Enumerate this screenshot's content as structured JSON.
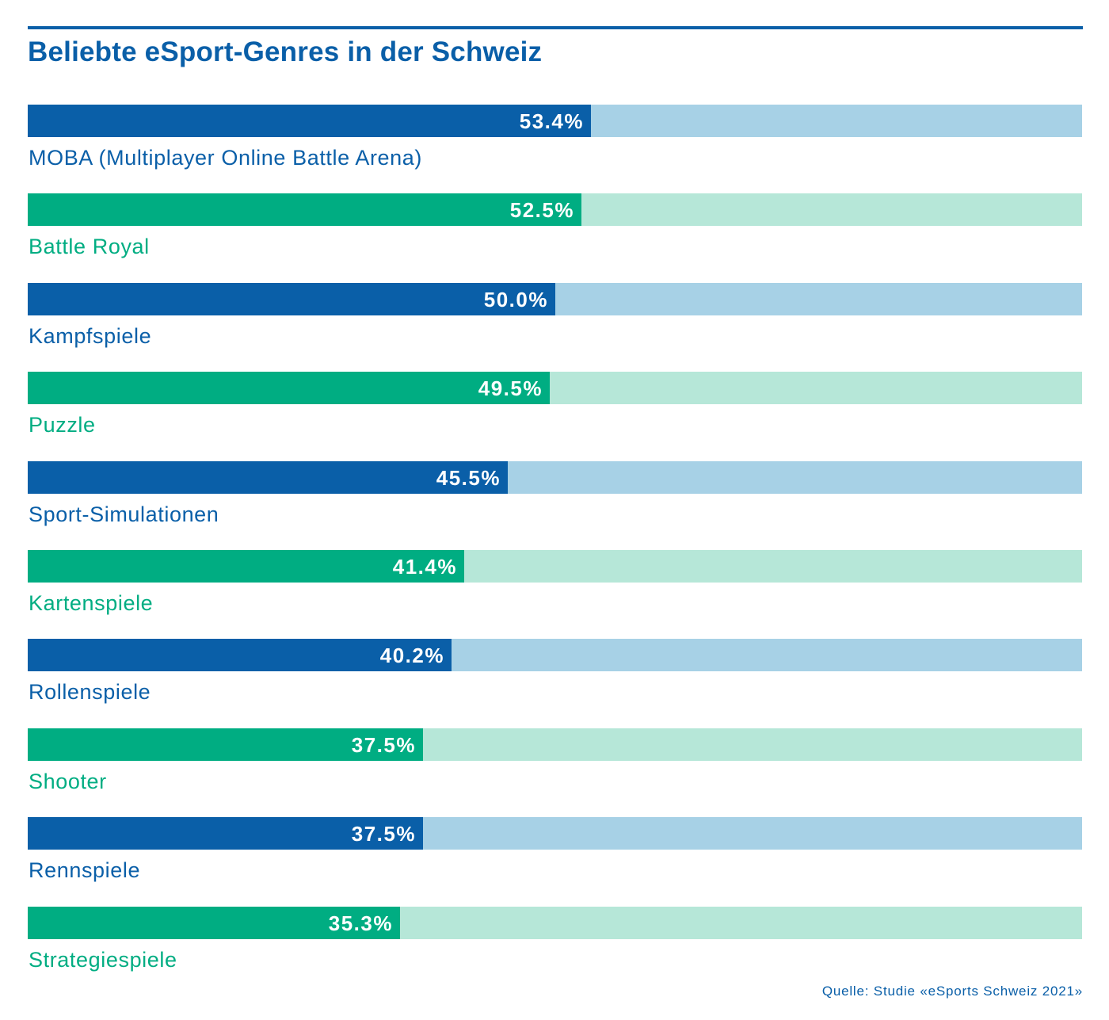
{
  "title": "Beliebte eSport-Genres in der Schweiz",
  "source": "Quelle: Studie «eSports Schweiz 2021»",
  "colors": {
    "blue": "#0a5fa8",
    "blue_light": "#a7d1e6",
    "green": "#00ad82",
    "green_light": "#b6e7d8",
    "rule": "#0a5fa8"
  },
  "chart_data": {
    "type": "bar",
    "orientation": "horizontal",
    "title": "Beliebte eSport-Genres in der Schweiz",
    "categories": [
      "MOBA (Multiplayer Online Battle Arena)",
      "Battle Royal",
      "Kampfspiele",
      "Puzzle",
      "Sport-Simulationen",
      "Kartenspiele",
      "Rollenspiele",
      "Shooter",
      "Rennspiele",
      "Strategiespiele"
    ],
    "values": [
      53.4,
      52.5,
      50.0,
      49.5,
      45.5,
      41.4,
      40.2,
      37.5,
      37.5,
      35.3
    ],
    "value_labels": [
      "53.4%",
      "52.5%",
      "50.0%",
      "49.5%",
      "45.5%",
      "41.4%",
      "40.2%",
      "37.5%",
      "37.5%",
      "35.3%"
    ],
    "color_pattern": [
      "blue",
      "green"
    ],
    "xlim": [
      0,
      100
    ],
    "grid": false,
    "legend": "none"
  }
}
